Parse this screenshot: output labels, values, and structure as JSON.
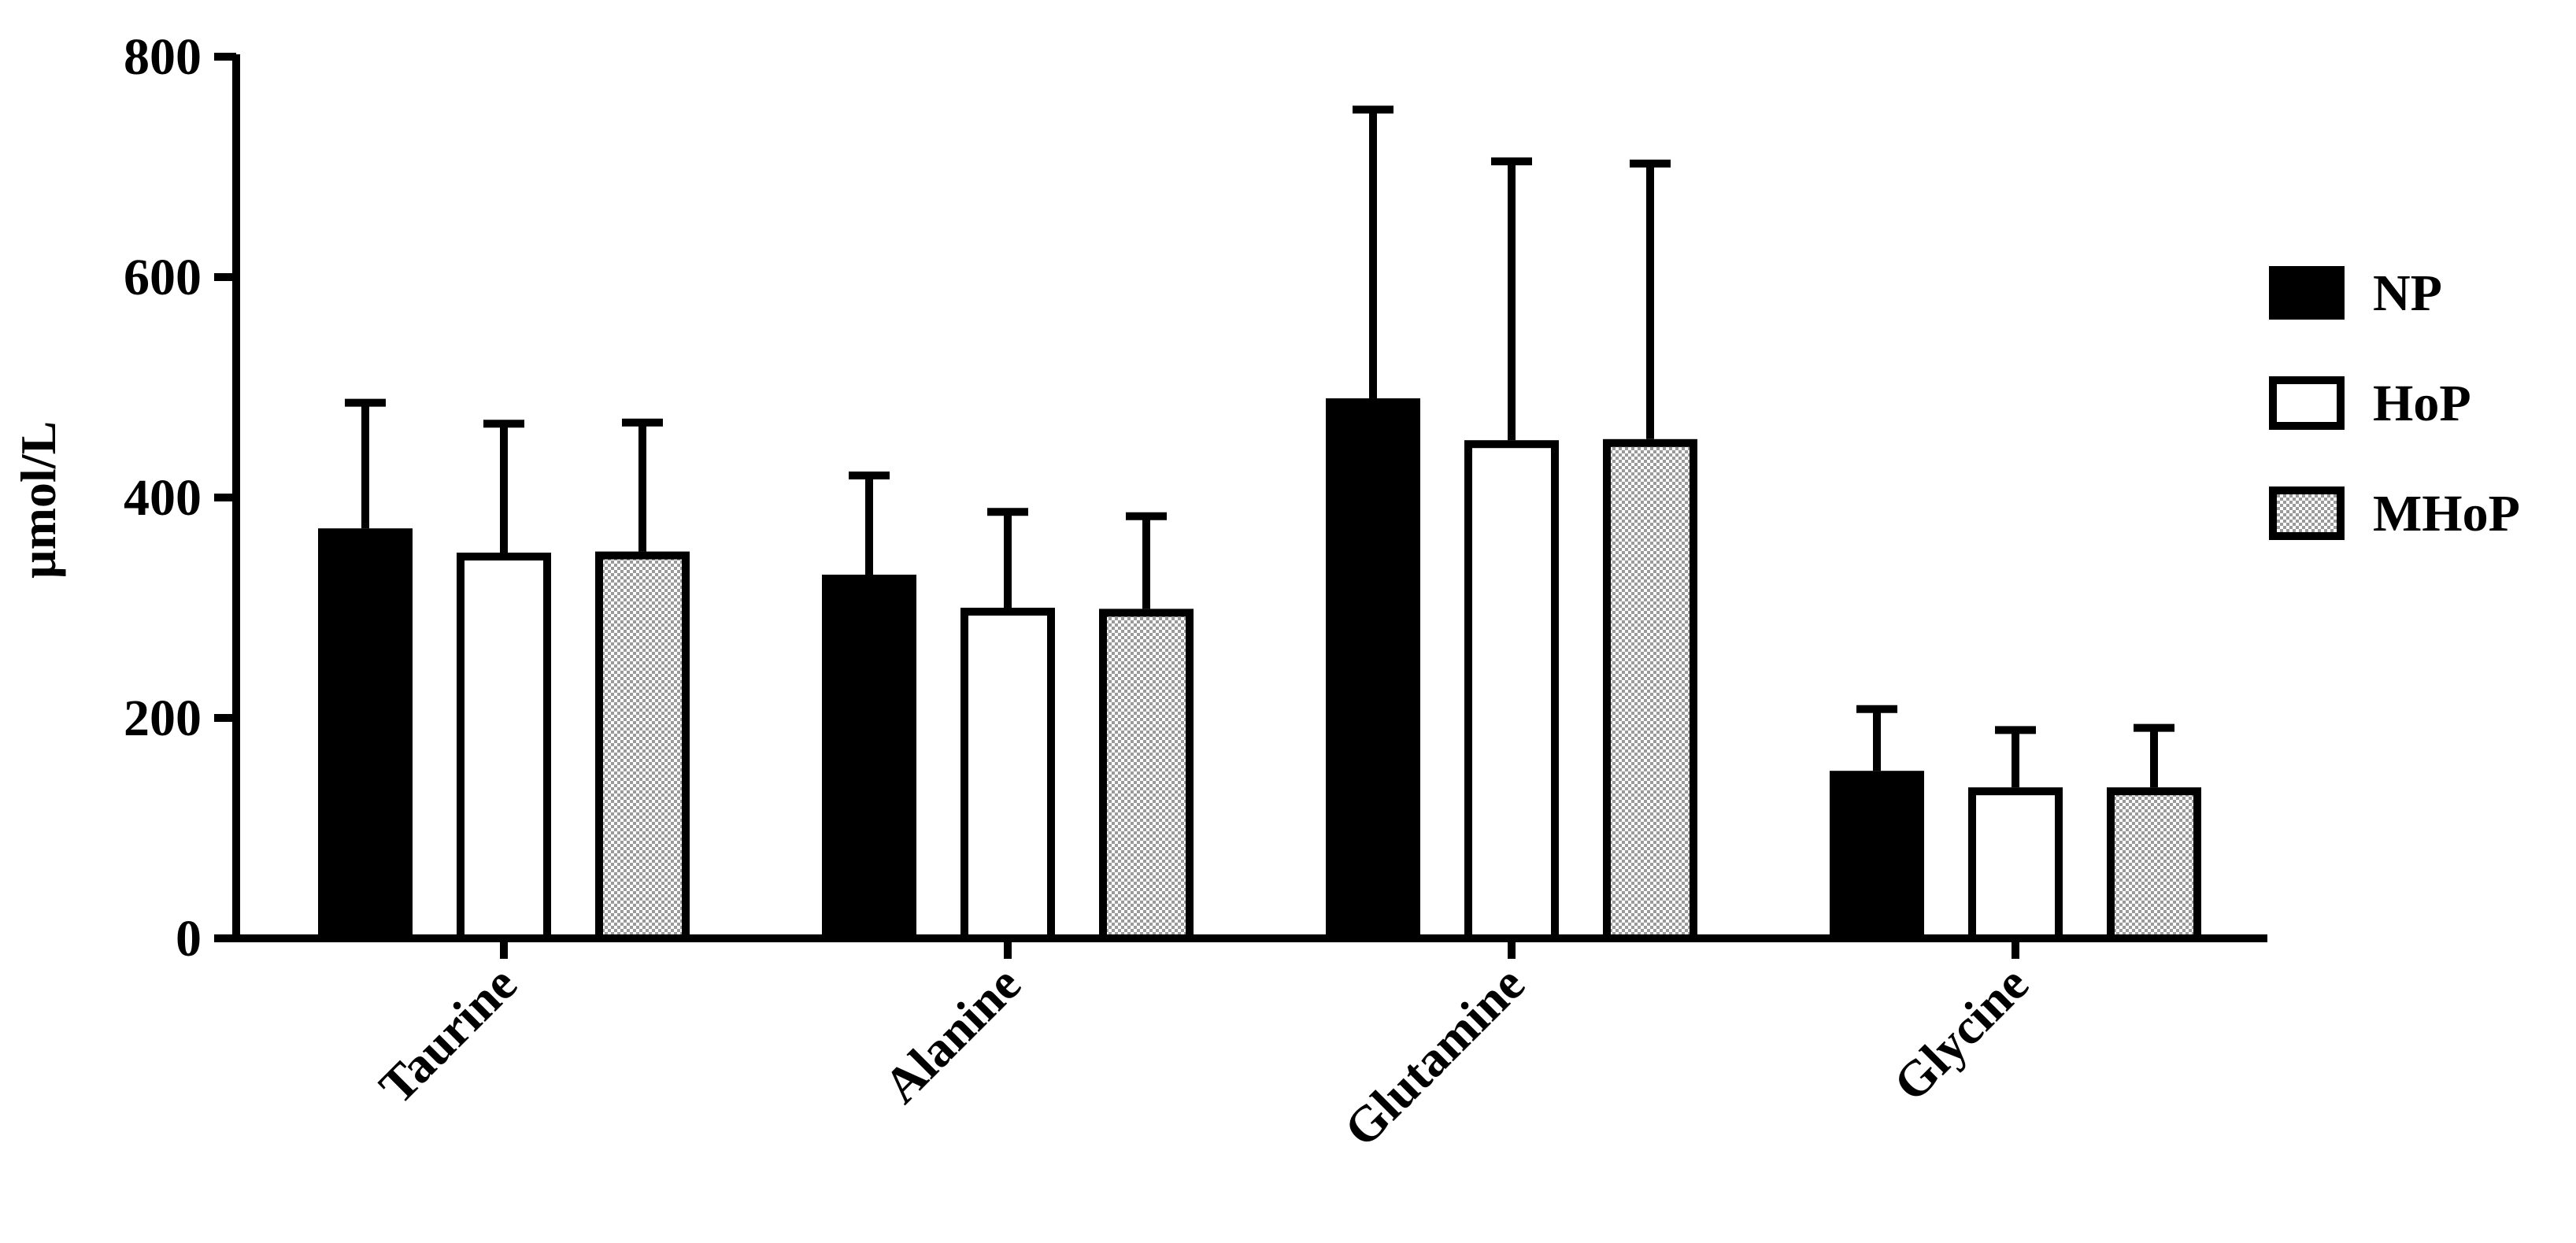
{
  "chart_data": {
    "type": "bar",
    "categories": [
      "Taurine",
      "Alanine",
      "Glutamine",
      "Glycine"
    ],
    "series": [
      {
        "name": "NP",
        "values": [
          372,
          330,
          490,
          152
        ],
        "errors": [
          114,
          90,
          262,
          56
        ],
        "fill": "solid"
      },
      {
        "name": "HoP",
        "values": [
          350,
          300,
          452,
          137
        ],
        "errors": [
          117,
          87,
          253,
          52
        ],
        "fill": "hollow"
      },
      {
        "name": "MHoP",
        "values": [
          351,
          299,
          453,
          137
        ],
        "errors": [
          117,
          84,
          250,
          54
        ],
        "fill": "checker"
      }
    ],
    "title": "",
    "xlabel": "",
    "ylabel": "µmol/L",
    "ylim": [
      0,
      800
    ],
    "yticks": [
      0,
      200,
      400,
      600,
      800
    ],
    "grid": false,
    "legend": "right",
    "colors": {
      "bar": "#000000",
      "background": "#ffffff",
      "checker_light": "#ffffff",
      "checker_dark": "#9a9a9a"
    }
  }
}
